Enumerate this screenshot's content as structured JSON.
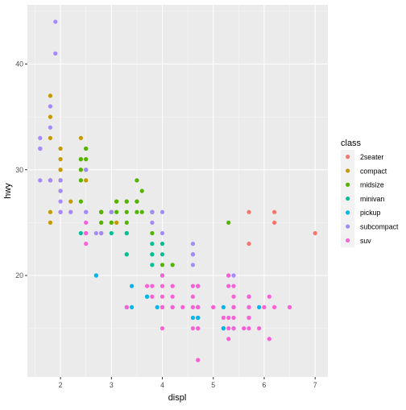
{
  "chart_data": {
    "type": "scatter",
    "title": "",
    "xlabel": "displ",
    "ylabel": "hwy",
    "xlim": [
      1.35,
      7.25
    ],
    "ylim": [
      10.4,
      45.6
    ],
    "xticks": [
      2,
      3,
      4,
      5,
      6,
      7
    ],
    "yticks": [
      20,
      30,
      40
    ],
    "grid": true,
    "legend": {
      "title": "class",
      "placement": "right"
    },
    "series": [
      {
        "name": "2seater",
        "color": "#F8766D",
        "points": [
          [
            5.7,
            26
          ],
          [
            5.7,
            23
          ],
          [
            6.2,
            26
          ],
          [
            6.2,
            25
          ],
          [
            7.0,
            24
          ]
        ]
      },
      {
        "name": "compact",
        "color": "#C49A00",
        "points": [
          [
            1.8,
            29
          ],
          [
            1.8,
            29
          ],
          [
            2.0,
            31
          ],
          [
            2.0,
            30
          ],
          [
            2.8,
            26
          ],
          [
            2.8,
            26
          ],
          [
            3.1,
            27
          ],
          [
            1.8,
            26
          ],
          [
            1.8,
            25
          ],
          [
            2.0,
            28
          ],
          [
            2.0,
            29
          ],
          [
            2.8,
            25
          ],
          [
            2.8,
            24
          ],
          [
            3.1,
            25
          ],
          [
            2.2,
            26
          ],
          [
            2.2,
            27
          ],
          [
            2.4,
            30
          ],
          [
            2.4,
            33
          ],
          [
            3.0,
            26
          ],
          [
            3.0,
            25
          ],
          [
            2.4,
            31
          ],
          [
            1.8,
            35
          ],
          [
            1.8,
            37
          ],
          [
            1.8,
            33
          ],
          [
            2.0,
            26
          ],
          [
            2.8,
            24
          ],
          [
            2.0,
            29
          ],
          [
            2.0,
            29
          ],
          [
            1.8,
            29
          ],
          [
            2.5,
            29
          ],
          [
            2.0,
            30
          ],
          [
            2.0,
            32
          ],
          [
            2.8,
            26
          ],
          [
            3.3,
            27
          ]
        ]
      },
      {
        "name": "midsize",
        "color": "#53B400",
        "points": [
          [
            2.4,
            27
          ],
          [
            2.4,
            30
          ],
          [
            3.1,
            26
          ],
          [
            3.5,
            29
          ],
          [
            3.6,
            26
          ],
          [
            2.4,
            31
          ],
          [
            3.0,
            26
          ],
          [
            3.3,
            27
          ],
          [
            3.3,
            25
          ],
          [
            3.8,
            26
          ],
          [
            3.8,
            24
          ],
          [
            3.8,
            26
          ],
          [
            5.3,
            25
          ],
          [
            2.5,
            30
          ],
          [
            2.5,
            31
          ],
          [
            3.5,
            27
          ],
          [
            2.8,
            26
          ],
          [
            3.0,
            25
          ],
          [
            3.5,
            26
          ],
          [
            3.6,
            28
          ],
          [
            4.2,
            21
          ],
          [
            2.5,
            32
          ],
          [
            2.5,
            32
          ],
          [
            3.5,
            27
          ],
          [
            2.4,
            29
          ],
          [
            3.0,
            26
          ],
          [
            1.8,
            29
          ],
          [
            2.0,
            28
          ],
          [
            2.8,
            25
          ],
          [
            3.1,
            27
          ],
          [
            4.0,
            21
          ],
          [
            4.0,
            20
          ],
          [
            3.3,
            26
          ],
          [
            2.8,
            26
          ]
        ]
      },
      {
        "name": "minivan",
        "color": "#00C094",
        "points": [
          [
            2.4,
            24
          ],
          [
            3.0,
            24
          ],
          [
            3.3,
            22
          ],
          [
            3.3,
            22
          ],
          [
            3.3,
            24
          ],
          [
            3.3,
            24
          ],
          [
            3.8,
            22
          ],
          [
            3.8,
            21
          ],
          [
            3.8,
            22
          ],
          [
            3.8,
            23
          ],
          [
            4.0,
            23
          ],
          [
            4.0,
            22
          ]
        ]
      },
      {
        "name": "pickup",
        "color": "#00B6EB",
        "points": [
          [
            2.7,
            20
          ],
          [
            2.7,
            20
          ],
          [
            3.4,
            17
          ],
          [
            3.4,
            19
          ],
          [
            3.7,
            18
          ],
          [
            3.9,
            17
          ],
          [
            4.0,
            20
          ],
          [
            4.7,
            17
          ],
          [
            4.7,
            16
          ],
          [
            4.7,
            16
          ],
          [
            5.2,
            15
          ],
          [
            5.2,
            15
          ],
          [
            5.7,
            17
          ],
          [
            5.9,
            17
          ],
          [
            4.2,
            17
          ],
          [
            4.6,
            16
          ],
          [
            5.4,
            17
          ],
          [
            5.4,
            15
          ],
          [
            4.7,
            17
          ],
          [
            4.7,
            17
          ],
          [
            4.7,
            19
          ],
          [
            3.3,
            17
          ],
          [
            3.7,
            18
          ],
          [
            4.7,
            16
          ],
          [
            5.2,
            17
          ]
        ]
      },
      {
        "name": "subcompact",
        "color": "#A58AFF",
        "points": [
          [
            3.8,
            26
          ],
          [
            3.8,
            25
          ],
          [
            4.0,
            26
          ],
          [
            4.0,
            24
          ],
          [
            4.6,
            21
          ],
          [
            4.6,
            22
          ],
          [
            4.6,
            23
          ],
          [
            4.6,
            22
          ],
          [
            5.4,
            20
          ],
          [
            1.6,
            33
          ],
          [
            1.6,
            32
          ],
          [
            1.6,
            32
          ],
          [
            1.6,
            29
          ],
          [
            1.6,
            32
          ],
          [
            1.8,
            34
          ],
          [
            1.8,
            36
          ],
          [
            1.8,
            36
          ],
          [
            2.0,
            29
          ],
          [
            2.0,
            26
          ],
          [
            2.0,
            27
          ],
          [
            2.5,
            30
          ],
          [
            2.2,
            26
          ],
          [
            2.5,
            26
          ],
          [
            2.7,
            24
          ],
          [
            1.8,
            29
          ],
          [
            1.9,
            44
          ],
          [
            1.9,
            41
          ],
          [
            2.0,
            26
          ],
          [
            2.5,
            24
          ],
          [
            2.5,
            26
          ],
          [
            3.0,
            26
          ],
          [
            2.0,
            28
          ],
          [
            1.8,
            29
          ],
          [
            2.8,
            24
          ]
        ]
      },
      {
        "name": "suv",
        "color": "#FB61D7",
        "points": [
          [
            5.3,
            20
          ],
          [
            5.3,
            15
          ],
          [
            5.3,
            20
          ],
          [
            5.7,
            17
          ],
          [
            6.0,
            17
          ],
          [
            5.7,
            18
          ],
          [
            6.5,
            17
          ],
          [
            4.7,
            19
          ],
          [
            4.7,
            17
          ],
          [
            4.7,
            12
          ],
          [
            4.7,
            12
          ],
          [
            5.2,
            16
          ],
          [
            5.7,
            18
          ],
          [
            5.9,
            15
          ],
          [
            6.1,
            18
          ],
          [
            5.3,
            16
          ],
          [
            5.3,
            19
          ],
          [
            5.4,
            17
          ],
          [
            4.0,
            17
          ],
          [
            4.0,
            19
          ],
          [
            4.6,
            17
          ],
          [
            5.0,
            17
          ],
          [
            4.2,
            19
          ],
          [
            4.2,
            17
          ],
          [
            5.4,
            18
          ],
          [
            5.4,
            17
          ],
          [
            4.7,
            15
          ],
          [
            5.7,
            15
          ],
          [
            6.1,
            14
          ],
          [
            4.0,
            15
          ],
          [
            4.6,
            19
          ],
          [
            4.6,
            18
          ],
          [
            5.7,
            16
          ],
          [
            5.4,
            15
          ],
          [
            3.7,
            19
          ],
          [
            4.7,
            19
          ],
          [
            4.7,
            17
          ],
          [
            3.3,
            17
          ],
          [
            4.4,
            17
          ],
          [
            2.5,
            23
          ],
          [
            2.5,
            24
          ],
          [
            6.2,
            17
          ],
          [
            5.4,
            19
          ],
          [
            5.3,
            14
          ],
          [
            4.0,
            18
          ],
          [
            2.5,
            25
          ],
          [
            4.7,
            17
          ],
          [
            5.3,
            20
          ],
          [
            4.2,
            18
          ],
          [
            5.7,
            16
          ],
          [
            6.5,
            17
          ],
          [
            4.7,
            15
          ],
          [
            3.8,
            18
          ],
          [
            3.8,
            19
          ],
          [
            4.0,
            17
          ],
          [
            4.0,
            20
          ],
          [
            4.6,
            15
          ],
          [
            5.0,
            17
          ],
          [
            5.4,
            16
          ],
          [
            5.6,
            15
          ]
        ]
      }
    ]
  }
}
